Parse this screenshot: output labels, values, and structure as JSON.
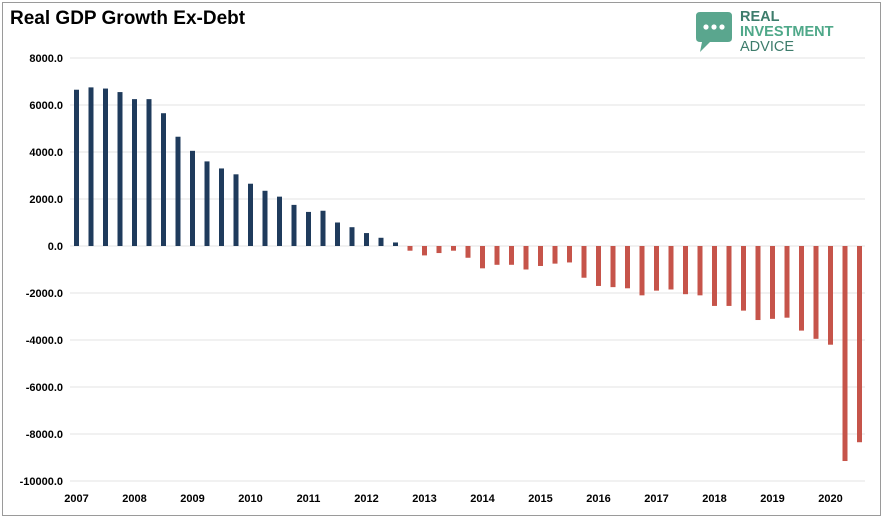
{
  "title": "Real GDP Growth Ex-Debt",
  "logo": {
    "line1": "REAL",
    "line2": "INVESTMENT",
    "line3": "ADVICE"
  },
  "colors": {
    "positive": "#1f3b5c",
    "negative": "#c6544a",
    "grid": "#e3e3e3",
    "logo_green": "#5aa68e"
  },
  "chart_data": {
    "type": "bar",
    "title": "Real GDP Growth Ex-Debt",
    "xlabel": "",
    "ylabel": "",
    "ylim": [
      -10000,
      8000
    ],
    "yticks": [
      8000,
      6000,
      4000,
      2000,
      0,
      -2000,
      -4000,
      -6000,
      -8000,
      -10000
    ],
    "ytick_labels": [
      "8000.0",
      "6000.0",
      "4000.0",
      "2000.0",
      "0.0",
      "-2000.0",
      "-4000.0",
      "-6000.0",
      "-8000.0",
      "-10000.0"
    ],
    "xtick_labels": [
      "2007",
      "2008",
      "2009",
      "2010",
      "2011",
      "2012",
      "2013",
      "2014",
      "2015",
      "2016",
      "2017",
      "2018",
      "2019",
      "2020"
    ],
    "frequency": "quarterly",
    "start": "2007-Q1",
    "grid": true,
    "legend": "none",
    "values": [
      6650,
      6750,
      6700,
      6550,
      6250,
      6250,
      5650,
      4650,
      4050,
      3600,
      3300,
      3050,
      2650,
      2350,
      2100,
      1750,
      1450,
      1500,
      1000,
      800,
      550,
      350,
      150,
      -200,
      -400,
      -300,
      -200,
      -500,
      -950,
      -800,
      -800,
      -1000,
      -850,
      -750,
      -700,
      -1350,
      -1700,
      -1750,
      -1800,
      -2100,
      -1900,
      -1850,
      -2050,
      -2100,
      -2550,
      -2550,
      -2750,
      -3150,
      -3100,
      -3050,
      -3600,
      -3950,
      -4200,
      -9150,
      -8350
    ]
  }
}
